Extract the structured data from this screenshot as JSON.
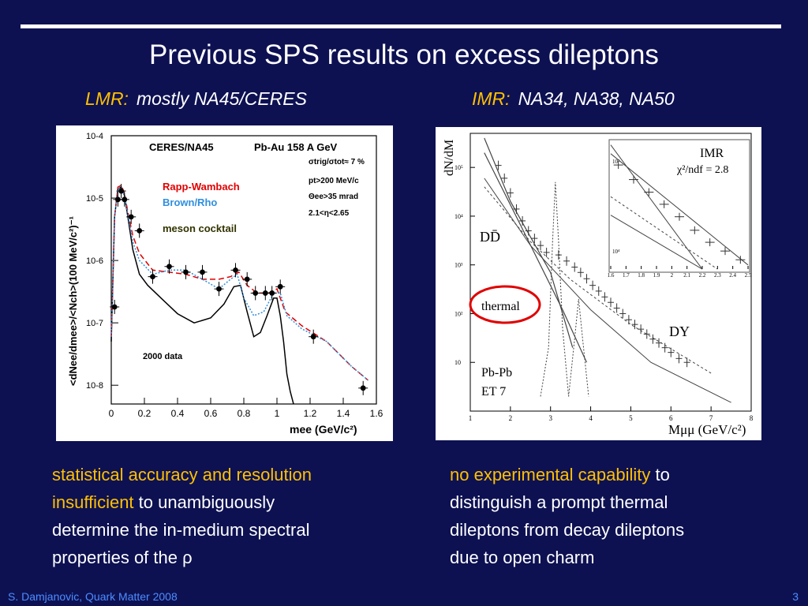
{
  "slide": {
    "title": "Previous SPS results on excess dileptons",
    "footer": "S. Damjanovic, Quark Matter 2008",
    "page_number": "3",
    "colors": {
      "background": "#0d1152",
      "highlight": "#ffc000",
      "footer": "#4d8dff"
    }
  },
  "lmr": {
    "label": "LMR:",
    "subtitle": "mostly NA45/CERES",
    "text": {
      "hl1": "statistical accuracy and resolution",
      "hl2": "insufficient",
      "rest1": " to unambiguously",
      "line3": "determine the in-medium spectral",
      "line4": "properties of the ρ"
    }
  },
  "imr": {
    "label": "IMR:",
    "subtitle": "NA34, NA38, NA50",
    "text": {
      "hl1": "no experimental capability",
      "rest1": " to",
      "line2": "distinguish a prompt thermal",
      "line3": "dileptons from decay dileptons",
      "line4": "due to open charm"
    }
  },
  "chart_data": [
    {
      "type": "scatter",
      "experiment": "CERES/NA45",
      "system": "Pb-Au 158 A GeV",
      "ylabel": "<dNee/dmee>/<Nch>(100 MeV/c²)⁻¹",
      "xlabel": "mee (GeV/c²)",
      "yscale": "log",
      "xlim": [
        0,
        1.6
      ],
      "ylim": [
        5e-09,
        0.0001
      ],
      "x_ticks": [
        "0",
        "0.2",
        "0.4",
        "0.6",
        "0.8",
        "1",
        "1.2",
        "1.4",
        "1.6"
      ],
      "y_ticks": [
        "10-4",
        "10-5",
        "10-6",
        "10-7",
        "10-8"
      ],
      "cuts": [
        "σtrig/σtot≈ 7 %",
        "pt>200 MeV/c",
        "Θee>35 mrad",
        "2.1<η<2.65"
      ],
      "legend": [
        {
          "name": "Rapp-Wambach",
          "color": "#e00000",
          "style": "dashed"
        },
        {
          "name": "Brown/Rho",
          "color": "#2f8fdf",
          "style": "dotted"
        },
        {
          "name": "meson cocktail",
          "color": "#000000",
          "style": "solid"
        }
      ],
      "data_label": "2000 data",
      "series": [
        {
          "name": "2000 data",
          "x": [
            0.02,
            0.04,
            0.06,
            0.08,
            0.12,
            0.17,
            0.25,
            0.35,
            0.45,
            0.55,
            0.65,
            0.75,
            0.82,
            0.87,
            0.93,
            0.97,
            1.02,
            1.22,
            1.52
          ],
          "y": [
            1.8e-07,
            9.5e-06,
            1.3e-05,
            9.5e-06,
            5e-06,
            3e-06,
            5.5e-07,
            8e-07,
            6.5e-07,
            6.5e-07,
            3.5e-07,
            7e-07,
            5e-07,
            3e-07,
            3e-07,
            3e-07,
            3.8e-07,
            6e-08,
            9e-09
          ]
        }
      ],
      "curves": [
        {
          "name": "meson cocktail",
          "x": [
            0,
            0.02,
            0.04,
            0.06,
            0.08,
            0.1,
            0.13,
            0.17,
            0.22,
            0.3,
            0.4,
            0.5,
            0.6,
            0.68,
            0.74,
            0.78,
            0.82,
            0.86,
            0.9,
            0.94,
            0.98,
            1.0,
            1.02,
            1.04,
            1.06,
            1.08,
            1.1
          ],
          "y": [
            5e-08,
            5e-06,
            1.4e-05,
            1.5e-05,
            1.1e-05,
            5e-06,
            1.5e-06,
            6e-07,
            4e-07,
            2.5e-07,
            1.4e-07,
            1e-07,
            1.2e-07,
            2e-07,
            3.8e-07,
            4e-07,
            1.5e-07,
            6e-08,
            7e-08,
            1.3e-07,
            2.5e-07,
            2.5e-07,
            1.3e-07,
            5e-08,
            1.5e-08,
            8e-09,
            5e-09
          ]
        },
        {
          "name": "Rapp-Wambach",
          "x": [
            0,
            0.02,
            0.04,
            0.06,
            0.08,
            0.1,
            0.13,
            0.17,
            0.25,
            0.35,
            0.45,
            0.55,
            0.65,
            0.72,
            0.77,
            0.82,
            0.88,
            0.95,
            1.0,
            1.05,
            1.15,
            1.3,
            1.45,
            1.55
          ],
          "y": [
            6e-08,
            5e-06,
            1.5e-05,
            1.6e-05,
            1.2e-05,
            6e-06,
            2.5e-06,
            1.3e-06,
            7e-07,
            6.5e-07,
            6e-07,
            5e-07,
            5e-07,
            5.5e-07,
            6.5e-07,
            4e-07,
            3e-07,
            3e-07,
            3.5e-07,
            1.5e-07,
            9e-08,
            5e-08,
            2e-08,
            1.2e-08
          ]
        },
        {
          "name": "Brown/Rho",
          "x": [
            0,
            0.02,
            0.04,
            0.06,
            0.08,
            0.1,
            0.13,
            0.17,
            0.25,
            0.35,
            0.45,
            0.55,
            0.65,
            0.72,
            0.76,
            0.8,
            0.86,
            0.92,
            0.98,
            1.02,
            1.06,
            1.15,
            1.3,
            1.45,
            1.55
          ],
          "y": [
            6e-08,
            5e-06,
            1.4e-05,
            1.5e-05,
            1.1e-05,
            5.5e-06,
            2e-06,
            1e-06,
            6e-07,
            7e-07,
            7e-07,
            5e-07,
            3.5e-07,
            5e-07,
            6e-07,
            2.5e-07,
            1.3e-07,
            1.5e-07,
            3e-07,
            3e-07,
            1.3e-07,
            8e-08,
            5e-08,
            2e-08,
            1.2e-08
          ]
        }
      ]
    },
    {
      "type": "scatter",
      "ylabel": "dN/dM",
      "xlabel": "Mμμ (GeV/c²)",
      "yscale": "log",
      "xlim": [
        1,
        8
      ],
      "ylim": [
        1,
        500000.0
      ],
      "x_ticks": [
        "1",
        "2",
        "3",
        "4",
        "5",
        "6",
        "7",
        "8"
      ],
      "y_ticks": [
        "10⁵",
        "10⁴",
        "10³",
        "10²",
        "10"
      ],
      "labels": [
        "DD̄",
        "thermal",
        "DY",
        "Pb-Pb",
        "ET 7"
      ],
      "series": [
        {
          "name": "data",
          "x": [
            1.7,
            1.85,
            2.0,
            2.15,
            2.3,
            2.45,
            2.6,
            2.75,
            2.9,
            3.2,
            3.4,
            3.6,
            3.75,
            3.9,
            4.05,
            4.2,
            4.35,
            4.5,
            4.65,
            4.8,
            4.95,
            5.1,
            5.25,
            5.4,
            5.55,
            5.7,
            5.85,
            6.0,
            6.2,
            6.4
          ],
          "y": [
            110000,
            60000,
            30000,
            14000,
            8000,
            5000,
            3500,
            2500,
            1800,
            1600,
            1200,
            900,
            700,
            520,
            380,
            290,
            220,
            170,
            130,
            100,
            75,
            60,
            48,
            38,
            30,
            25,
            20,
            16,
            12,
            10
          ]
        }
      ],
      "inset": {
        "label": "IMR",
        "fit": "χ²/ndf = 2.8",
        "xlim": [
          1.6,
          2.5
        ],
        "x_ticks": [
          "1.6",
          "1.7",
          "1.8",
          "1.9",
          "2",
          "2.1",
          "2.2",
          "2.3",
          "2.4",
          "2.5"
        ],
        "y_ticks": [
          "10⁵",
          "10⁴"
        ],
        "series": {
          "x": [
            1.65,
            1.75,
            1.85,
            1.95,
            2.05,
            2.15,
            2.25,
            2.35,
            2.45
          ],
          "y": [
            90000,
            62000,
            45000,
            33000,
            24000,
            17000,
            12500,
            10000,
            8000
          ]
        }
      }
    }
  ]
}
